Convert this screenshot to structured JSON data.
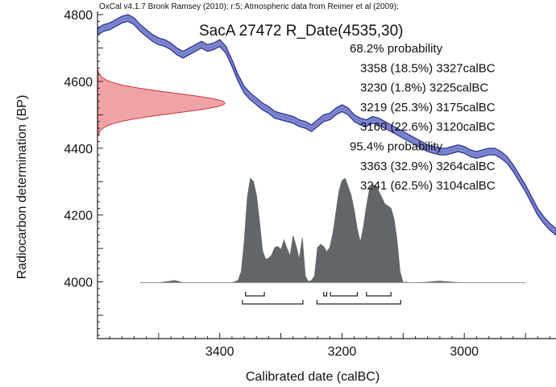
{
  "chart_data": {
    "type": "area",
    "header": "OxCal v4.1.7 Bronk Ramsey (2010); r:5; Atmospheric data from Reimer et al (2009);",
    "title": "SacA 27472 R_Date(4535,30)",
    "xlabel": "Calibrated date (calBC)",
    "ylabel": "Radiocarbon determination (BP)",
    "xlim": [
      3600,
      2850
    ],
    "ylim": [
      3830,
      4810
    ],
    "x_ticks": [
      {
        "value": 3400,
        "label": "3400"
      },
      {
        "value": 3200,
        "label": "3200"
      },
      {
        "value": 3000,
        "label": "3000"
      }
    ],
    "y_ticks": [
      {
        "value": 4000,
        "label": "4000"
      },
      {
        "value": 4200,
        "label": "4200"
      },
      {
        "value": 4400,
        "label": "4400"
      },
      {
        "value": 4600,
        "label": "4600"
      },
      {
        "value": 4800,
        "label": "4800"
      }
    ],
    "colors": {
      "calibration_fill": "#7f86cf",
      "calibration_stroke": "#2d3596",
      "radiocarbon_fill": "#f0a3a6",
      "radiocarbon_stroke": "#d0343c",
      "posterior_fill": "#62656a"
    },
    "calibration_curve": {
      "x": [
        3600,
        3590,
        3580,
        3570,
        3560,
        3550,
        3540,
        3530,
        3520,
        3510,
        3500,
        3490,
        3480,
        3470,
        3460,
        3450,
        3440,
        3430,
        3420,
        3410,
        3400,
        3390,
        3380,
        3370,
        3360,
        3350,
        3340,
        3330,
        3320,
        3310,
        3300,
        3290,
        3280,
        3270,
        3260,
        3250,
        3240,
        3230,
        3220,
        3210,
        3200,
        3190,
        3180,
        3170,
        3160,
        3150,
        3140,
        3130,
        3120,
        3110,
        3100,
        3090,
        3080,
        3070,
        3060,
        3050,
        3040,
        3030,
        3020,
        3010,
        3000,
        2990,
        2980,
        2970,
        2960,
        2950,
        2940,
        2930,
        2920,
        2910,
        2900,
        2890,
        2880,
        2870,
        2860,
        2850
      ],
      "y": [
        4750,
        4760,
        4765,
        4775,
        4785,
        4790,
        4780,
        4760,
        4745,
        4730,
        4720,
        4715,
        4705,
        4690,
        4680,
        4690,
        4700,
        4710,
        4700,
        4705,
        4715,
        4695,
        4655,
        4610,
        4575,
        4555,
        4540,
        4525,
        4515,
        4500,
        4495,
        4490,
        4485,
        4475,
        4470,
        4460,
        4475,
        4490,
        4495,
        4510,
        4520,
        4510,
        4490,
        4480,
        4475,
        4485,
        4480,
        4470,
        4460,
        4450,
        4440,
        4430,
        4420,
        4410,
        4400,
        4395,
        4390,
        4390,
        4395,
        4400,
        4395,
        4385,
        4380,
        4385,
        4390,
        4390,
        4380,
        4365,
        4340,
        4310,
        4280,
        4245,
        4210,
        4185,
        4165,
        4150
      ],
      "band_halfwidth": 10
    },
    "radiocarbon_date": {
      "mean": 4535,
      "sd": 30,
      "label": "R_Date(4535,30)"
    },
    "posterior": {
      "x": [
        3530,
        3500,
        3480,
        3475,
        3470,
        3460,
        3400,
        3380,
        3370,
        3365,
        3360,
        3355,
        3350,
        3345,
        3340,
        3335,
        3330,
        3325,
        3320,
        3315,
        3310,
        3305,
        3300,
        3295,
        3290,
        3285,
        3280,
        3275,
        3270,
        3265,
        3260,
        3255,
        3250,
        3245,
        3240,
        3235,
        3230,
        3225,
        3220,
        3215,
        3210,
        3205,
        3200,
        3195,
        3190,
        3185,
        3180,
        3175,
        3170,
        3165,
        3160,
        3155,
        3150,
        3145,
        3140,
        3135,
        3130,
        3125,
        3120,
        3115,
        3110,
        3105,
        3100,
        3095,
        3090,
        3080,
        3060,
        3040,
        3020,
        3000,
        2960,
        2920,
        2900
      ],
      "density": [
        0,
        0,
        0.015,
        0.02,
        0.015,
        0,
        0,
        0,
        0.02,
        0.1,
        0.38,
        0.8,
        0.98,
        0.95,
        0.82,
        0.58,
        0.3,
        0.22,
        0.23,
        0.26,
        0.33,
        0.34,
        0.31,
        0.4,
        0.32,
        0.25,
        0.44,
        0.34,
        0.22,
        0.42,
        0.06,
        0.01,
        0.02,
        0.06,
        0.33,
        0.36,
        0.34,
        0.29,
        0.33,
        0.46,
        0.66,
        0.86,
        0.96,
        0.98,
        0.9,
        0.82,
        0.68,
        0.5,
        0.38,
        0.52,
        0.72,
        0.88,
        0.92,
        0.91,
        0.86,
        0.8,
        0.74,
        0.72,
        0.7,
        0.6,
        0.4,
        0.1,
        0,
        0.005,
        0,
        0,
        0.005,
        0.015,
        0.005,
        0,
        0,
        0,
        0
      ]
    },
    "probability_ranges": {
      "sigma1": {
        "heading": "68.2% probability",
        "ranges": [
          {
            "text": "3358 (18.5%) 3327calBC",
            "from": 3358,
            "to": 3327,
            "percent": 18.5
          },
          {
            "text": "3230 (1.8%) 3225calBC",
            "from": 3230,
            "to": 3225,
            "percent": 1.8
          },
          {
            "text": "3219 (25.3%) 3175calBC",
            "from": 3219,
            "to": 3175,
            "percent": 25.3
          },
          {
            "text": "3160 (22.6%) 3120calBC",
            "from": 3160,
            "to": 3120,
            "percent": 22.6
          }
        ]
      },
      "sigma2": {
        "heading": "95.4% probability",
        "ranges": [
          {
            "text": "3363 (32.9%) 3264calBC",
            "from": 3363,
            "to": 3264,
            "percent": 32.9
          },
          {
            "text": "3241 (62.5%) 3104calBC",
            "from": 3241,
            "to": 3104,
            "percent": 62.5
          }
        ]
      }
    }
  }
}
